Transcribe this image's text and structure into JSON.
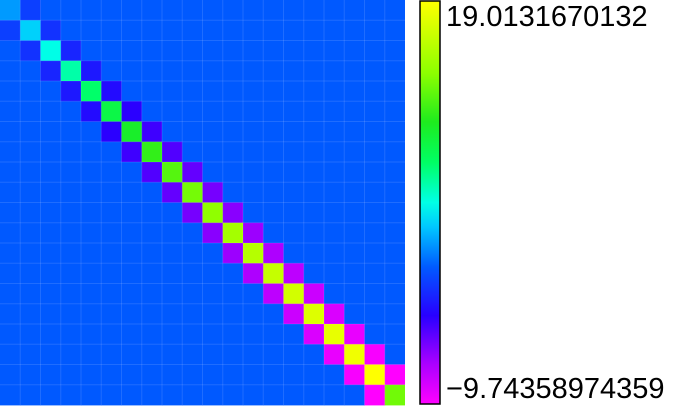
{
  "chart_data": {
    "type": "heatmap",
    "title": "",
    "xlabel": "",
    "ylabel": "",
    "colormap": "hsv-like: magenta (min) - blue - cyan - green - yellow (max)",
    "grid": true,
    "legend": "colorbar-right",
    "colorbar": {
      "max_label": "19.0131670132",
      "min_label": "−9.74358974359"
    },
    "vmin": -9.74358974359,
    "vmax": 19.0131670132,
    "n": 20,
    "off_band_value": 0.0,
    "diagonal": [
      1.7,
      3.2,
      4.6,
      6.0,
      7.4,
      8.7,
      9.9,
      11.0,
      12.1,
      13.1,
      14.0,
      14.9,
      15.7,
      16.4,
      17.0,
      17.5,
      18.0,
      18.4,
      19.0131670132,
      13.0
    ],
    "upper_off_diagonal": [
      -1.0,
      -1.5,
      -2.0,
      -2.5,
      -3.0,
      -3.5,
      -4.0,
      -4.5,
      -5.0,
      -5.5,
      -6.0,
      -6.5,
      -7.0,
      -7.5,
      -8.0,
      -8.5,
      -9.0,
      -9.5,
      -9.74358974359
    ],
    "lower_off_diagonal": [
      -1.0,
      -1.5,
      -2.0,
      -2.5,
      -3.0,
      -3.5,
      -4.0,
      -4.5,
      -5.0,
      -5.5,
      -6.0,
      -6.5,
      -7.0,
      -7.5,
      -8.0,
      -8.5,
      -9.0,
      -9.5,
      -9.74358974359
    ]
  }
}
